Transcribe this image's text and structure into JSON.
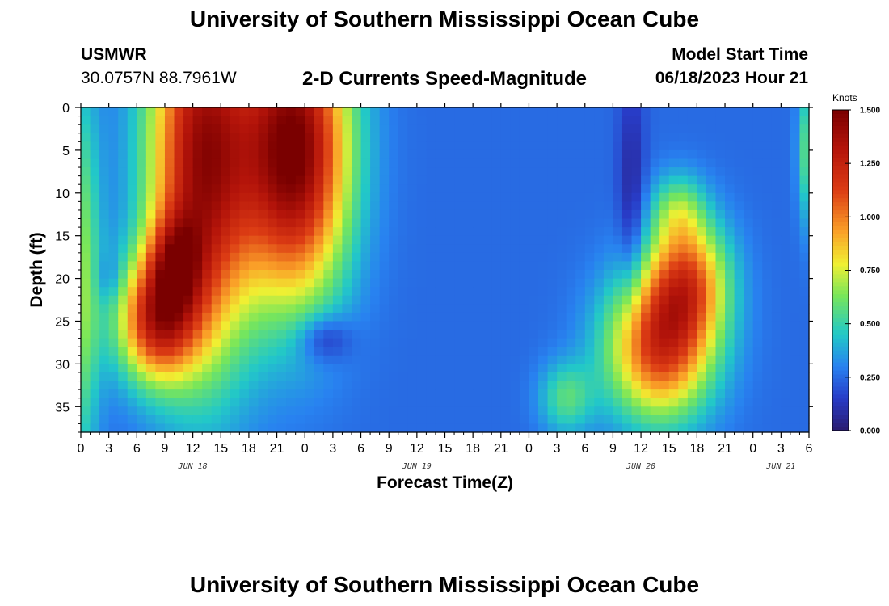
{
  "header": {
    "title": "University of Southern Mississippi Ocean Cube",
    "station": "USMWR",
    "coords": "30.0757N  88.7961W",
    "subtitle": "2-D Currents Speed-Magnitude",
    "start_label": "Model Start Time",
    "start_time": "06/18/2023 Hour 21"
  },
  "footer": {
    "title": "University of Southern Mississippi Ocean Cube"
  },
  "colors": {
    "low": "#2a1b6e",
    "mid": "#22c8c8",
    "high": "#7a0000"
  },
  "chart_data": {
    "type": "heatmap",
    "title": "2-D Currents Speed-Magnitude",
    "xlabel": "Forecast Time(Z)",
    "ylabel": "Depth (ft)",
    "x_hours_range": [
      0,
      78
    ],
    "x_ticks": [
      "0",
      "3",
      "6",
      "9",
      "12",
      "15",
      "18",
      "21",
      "0",
      "3",
      "6",
      "9",
      "12",
      "15",
      "18",
      "21",
      "0",
      "3",
      "6",
      "9",
      "12",
      "15",
      "18",
      "21",
      "0",
      "3",
      "6"
    ],
    "day_labels": [
      {
        "label": "JUN 18",
        "hour": 12
      },
      {
        "label": "JUN 19",
        "hour": 36
      },
      {
        "label": "JUN 20",
        "hour": 60
      },
      {
        "label": "JUN 21",
        "hour": 75
      }
    ],
    "ylim": [
      0,
      38
    ],
    "y_ticks": [
      0,
      5,
      10,
      15,
      20,
      25,
      30,
      35
    ],
    "colorbar": {
      "unit": "Knots",
      "range": [
        0,
        1.5
      ],
      "ticks": [
        "0.000",
        "0.250",
        "0.500",
        "0.750",
        "1.000",
        "1.250",
        "1.500"
      ]
    },
    "background_speed": 0.25,
    "features": [
      {
        "hour": 13,
        "depth": 6,
        "sx": 4.0,
        "sy": 16,
        "amp": 1.15,
        "note": "high"
      },
      {
        "hour": 0,
        "depth": 20,
        "sx": 1.5,
        "sy": 16,
        "amp": 0.4,
        "note": "edge"
      },
      {
        "hour": 8,
        "depth": 25,
        "sx": 3.0,
        "sy": 5,
        "amp": 0.85,
        "note": "high"
      },
      {
        "hour": 10,
        "depth": 18,
        "sx": 2.0,
        "sy": 4,
        "amp": 0.5,
        "note": "high"
      },
      {
        "hour": 23,
        "depth": 5,
        "sx": 4.0,
        "sy": 12,
        "amp": 1.25,
        "note": "high"
      },
      {
        "hour": 26,
        "depth": 27,
        "sx": 2.0,
        "sy": 2,
        "amp": -0.22,
        "note": "low"
      },
      {
        "hour": 62,
        "depth": 28,
        "sx": 4.0,
        "sy": 6,
        "amp": 0.9,
        "note": "high"
      },
      {
        "hour": 65,
        "depth": 20,
        "sx": 3.0,
        "sy": 5,
        "amp": 0.7,
        "note": "high"
      },
      {
        "hour": 64,
        "depth": 12,
        "sx": 2.0,
        "sy": 3,
        "amp": 0.3,
        "note": "mid"
      },
      {
        "hour": 59,
        "depth": 10,
        "sx": 1.0,
        "sy": 10,
        "amp": -0.18,
        "note": "low"
      },
      {
        "hour": 3,
        "depth": 20,
        "sx": 1.0,
        "sy": 2,
        "amp": -0.1,
        "note": "low"
      },
      {
        "hour": 52,
        "depth": 34,
        "sx": 2.0,
        "sy": 3,
        "amp": 0.3,
        "note": "mid"
      },
      {
        "hour": 78,
        "depth": 5,
        "sx": 0.8,
        "sy": 6,
        "amp": 0.35,
        "note": "edge"
      }
    ]
  }
}
